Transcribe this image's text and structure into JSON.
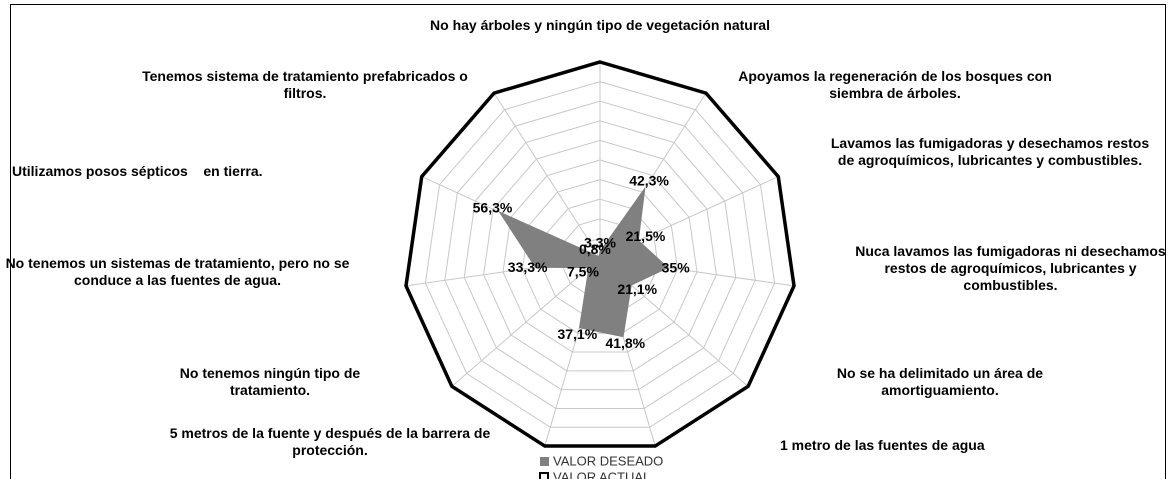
{
  "chart_data": {
    "type": "radar",
    "categories": [
      "No hay árboles y ningún tipo de vegetación natural",
      "Apoyamos la regeneración de los bosques con siembra de árboles.",
      "Lavamos las fumigadoras y desechamos restos de agroquímicos, lubricantes y combustibles.",
      "Nuca lavamos las fumigadoras ni desechamos restos de agroquímicos, lubricantes y combustibles.",
      "No se ha delimitado un área de amortiguamiento.",
      "1 metro de las fuentes de agua",
      "5 metros de la fuente y después de la barrera de protección.",
      "No tenemos ningún tipo de tratamiento.",
      "No tenemos un sistemas de tratamiento, pero no se conduce a las fuentes de agua.",
      "Utilizamos posos sépticos    en tierra.",
      "Tenemos sistema de tratamiento prefabricados o filtros."
    ],
    "series": [
      {
        "name": "VALOR DESEADO",
        "color": "#808080",
        "values": [
          3.3,
          42.3,
          21.5,
          35,
          21.1,
          41.8,
          37.1,
          7.5,
          33.3,
          56.3,
          0.8
        ],
        "value_labels": [
          "3,3%",
          "42,3%",
          "21,5%",
          "35%",
          "21,1%",
          "41,8%",
          "37,1%",
          "7,5%",
          "33,3%",
          "56,3%",
          "0,8%"
        ]
      },
      {
        "name": "VALOR ACTUAL",
        "color": "#000000",
        "values": [
          100,
          100,
          100,
          100,
          100,
          100,
          100,
          100,
          100,
          100,
          100
        ]
      }
    ],
    "rlim": [
      0,
      100
    ],
    "rticks": [
      0,
      10,
      20,
      30,
      40,
      50,
      60,
      70,
      80,
      90,
      100
    ],
    "grid": true
  }
}
